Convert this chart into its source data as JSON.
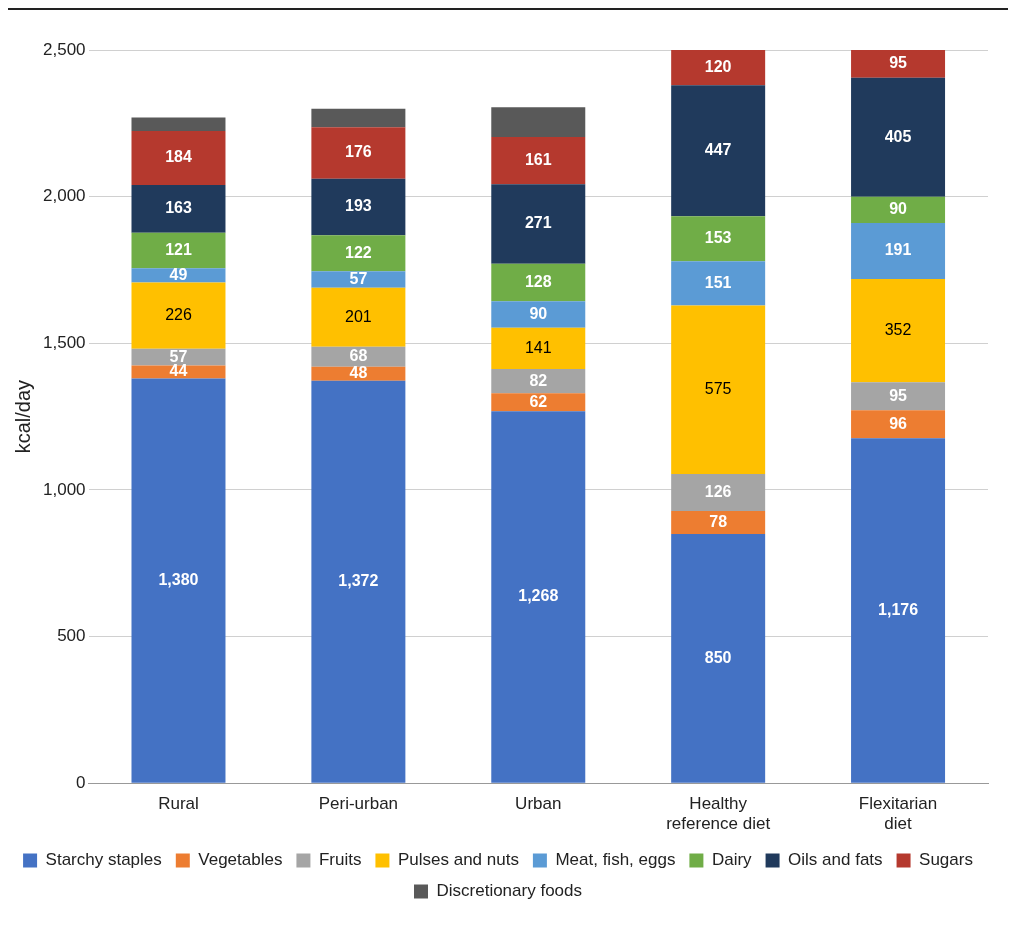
{
  "chart_data": {
    "type": "bar",
    "stacked": true,
    "ylabel": "kcal/day",
    "categories": [
      "Rural",
      "Peri-urban",
      "Urban",
      "Healthy reference diet",
      "Flexitarian diet"
    ],
    "ylim": [
      0,
      2500
    ],
    "yticks": [
      {
        "value": 0,
        "label": "0"
      },
      {
        "value": 500,
        "label": "500"
      },
      {
        "value": 1000,
        "label": "1,000"
      },
      {
        "value": 1500,
        "label": "1,500"
      },
      {
        "value": 2000,
        "label": "2,000"
      },
      {
        "value": 2500,
        "label": "2,500"
      }
    ],
    "grid": "y",
    "legend": "bottom",
    "series": [
      {
        "name": "Starchy staples",
        "color": "#4472c4",
        "values": [
          1380,
          1372,
          1268,
          850,
          1176
        ],
        "value_labels": [
          "1,380",
          "1,372",
          "1,268",
          "850",
          "1,176"
        ]
      },
      {
        "name": "Vegetables",
        "color": "#ed7d31",
        "values": [
          44,
          48,
          62,
          78,
          96
        ],
        "value_labels": [
          "44",
          "48",
          "62",
          "78",
          "96"
        ]
      },
      {
        "name": "Fruits",
        "color": "#a5a5a5",
        "values": [
          57,
          68,
          82,
          126,
          95
        ],
        "value_labels": [
          "57",
          "68",
          "82",
          "126",
          "95"
        ]
      },
      {
        "name": "Pulses and nuts",
        "color": "#ffc000",
        "values": [
          226,
          201,
          141,
          575,
          352
        ],
        "value_labels": [
          "226",
          "201",
          "141",
          "575",
          "352"
        ]
      },
      {
        "name": "Meat, fish, eggs",
        "color": "#5b9bd5",
        "values": [
          49,
          57,
          90,
          151,
          191
        ],
        "value_labels": [
          "49",
          "57",
          "90",
          "151",
          "191"
        ]
      },
      {
        "name": "Dairy",
        "color": "#70ad47",
        "values": [
          121,
          122,
          128,
          153,
          90
        ],
        "value_labels": [
          "121",
          "122",
          "128",
          "153",
          "90"
        ]
      },
      {
        "name": "Oils and fats",
        "color": "#203a5c",
        "values": [
          163,
          193,
          271,
          447,
          405
        ],
        "value_labels": [
          "163",
          "193",
          "271",
          "447",
          "405"
        ]
      },
      {
        "name": "Sugars",
        "color": "#b5392e",
        "values": [
          184,
          176,
          161,
          120,
          95
        ],
        "value_labels": [
          "184",
          "176",
          "161",
          "120",
          "95"
        ]
      },
      {
        "name": "Discretionary foods",
        "color": "#595959",
        "values": [
          46,
          63,
          102,
          null,
          null
        ]
      }
    ]
  }
}
